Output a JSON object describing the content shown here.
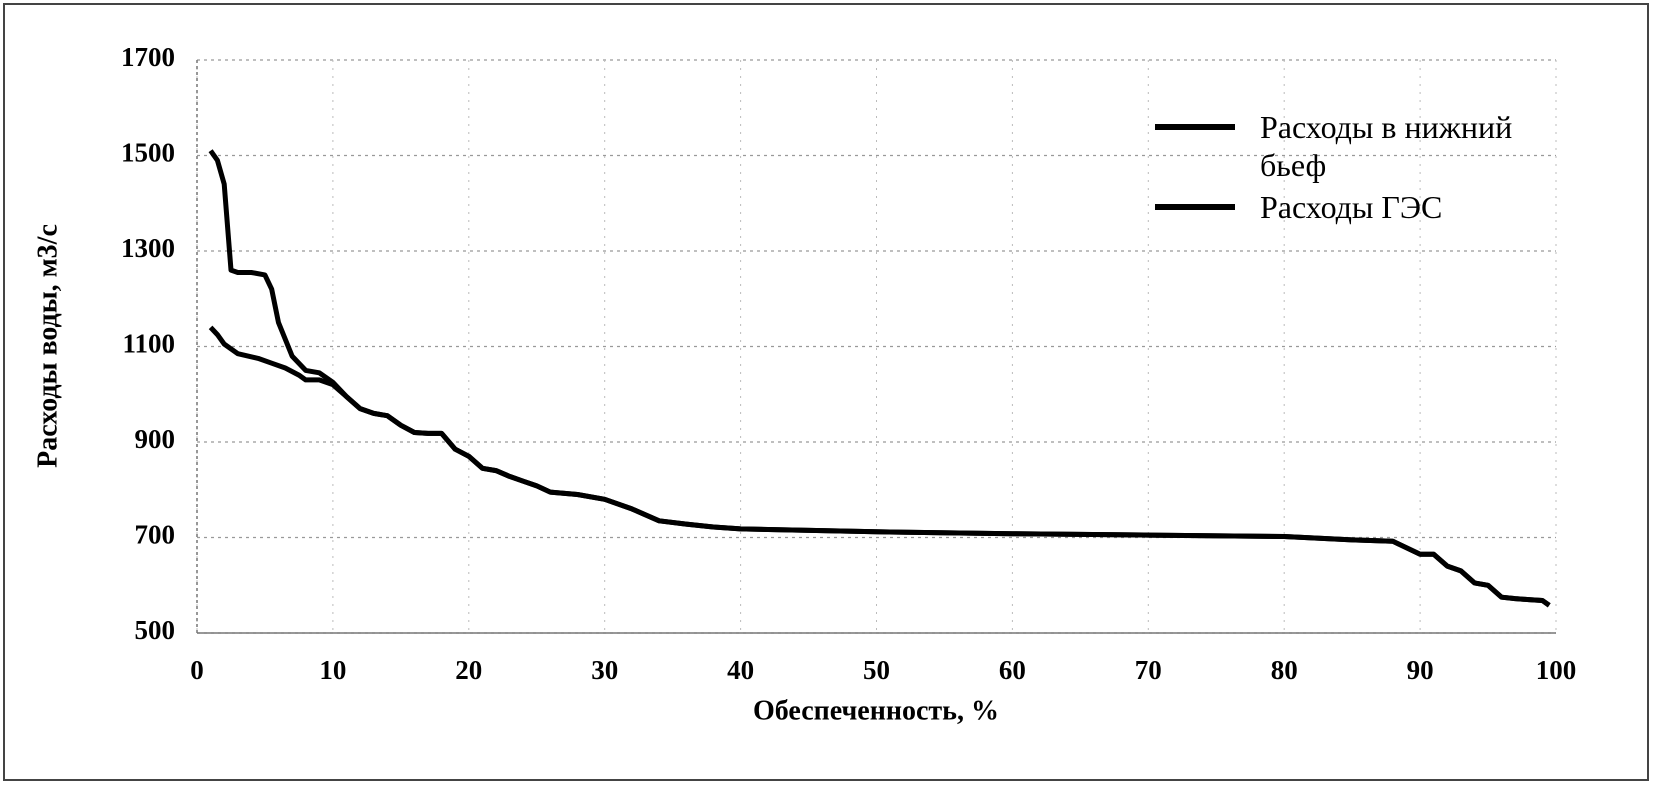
{
  "chart_data": {
    "type": "line",
    "xlabel": "Обеспеченность, %",
    "ylabel": "Расходы воды, м3/с",
    "xlim": [
      0,
      100
    ],
    "xticks": [
      0,
      10,
      20,
      30,
      40,
      50,
      60,
      70,
      80,
      90,
      100
    ],
    "ylim": [
      500,
      1700
    ],
    "yticks": [
      500,
      700,
      900,
      1100,
      1300,
      1500,
      1700
    ],
    "grid": true,
    "legend": "upper-right",
    "series": [
      {
        "name": "Расходы в нижний бьеф",
        "color": "#000000",
        "x": [
          1,
          1.5,
          2,
          2.5,
          3,
          4,
          5,
          5.5,
          6,
          7,
          8,
          9,
          10,
          11,
          12,
          13,
          14,
          15,
          16,
          17,
          18,
          19,
          20,
          21,
          22,
          23,
          24,
          25,
          26,
          28,
          30,
          32,
          34,
          36,
          38,
          40,
          50,
          60,
          70,
          80,
          85,
          88,
          90,
          91,
          92,
          93,
          94,
          95,
          96,
          97,
          98,
          99,
          99.5
        ],
        "values": [
          1510,
          1490,
          1440,
          1260,
          1255,
          1255,
          1250,
          1220,
          1150,
          1080,
          1050,
          1045,
          1025,
          995,
          970,
          960,
          955,
          935,
          920,
          918,
          918,
          885,
          870,
          845,
          840,
          828,
          818,
          808,
          795,
          790,
          780,
          760,
          735,
          728,
          722,
          718,
          712,
          708,
          705,
          702,
          695,
          692,
          665,
          665,
          640,
          630,
          605,
          600,
          575,
          572,
          570,
          568,
          558
        ]
      },
      {
        "name": "Расходы ГЭС",
        "color": "#000000",
        "x": [
          1,
          1.5,
          2,
          3,
          4.5,
          5.5,
          6.5,
          7.5,
          8,
          9,
          10,
          11,
          12,
          13,
          14,
          15,
          16,
          17,
          18,
          19,
          20,
          21,
          22,
          23,
          24,
          25,
          26,
          28,
          30,
          32,
          34,
          36,
          38,
          40,
          50,
          60,
          70,
          80,
          85,
          88,
          90,
          91,
          92,
          93,
          94,
          95,
          96,
          97,
          98,
          99,
          99.5
        ],
        "values": [
          1140,
          1125,
          1105,
          1085,
          1075,
          1065,
          1055,
          1040,
          1030,
          1030,
          1020,
          995,
          970,
          960,
          955,
          935,
          920,
          918,
          918,
          885,
          870,
          845,
          840,
          828,
          818,
          808,
          795,
          790,
          780,
          760,
          735,
          728,
          722,
          718,
          712,
          708,
          705,
          702,
          695,
          692,
          665,
          665,
          640,
          630,
          605,
          600,
          575,
          572,
          570,
          568,
          558
        ]
      }
    ]
  }
}
